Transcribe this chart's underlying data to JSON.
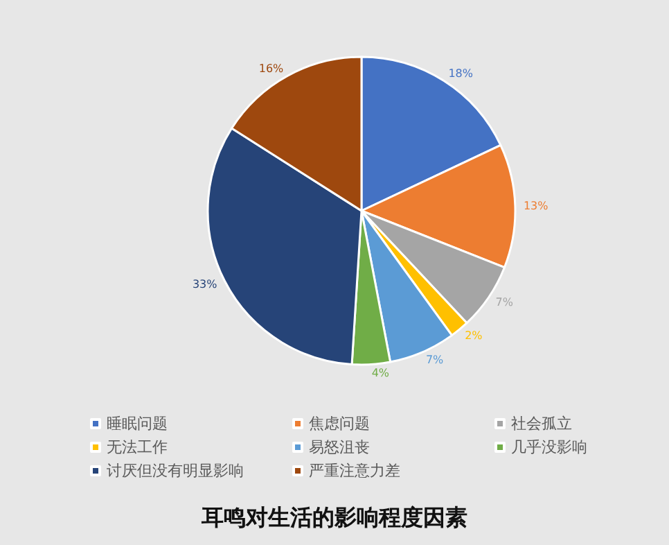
{
  "chart_data": {
    "type": "pie",
    "title": "耳鸣对生活的影响程度因素",
    "categories": [
      "睡眠问题",
      "焦虑问题",
      "社会孤立",
      "无法工作",
      "易怒沮丧",
      "几乎没影响",
      "讨厌但没有明显影响",
      "严重注意力差"
    ],
    "values": [
      18,
      13,
      7,
      2,
      7,
      4,
      33,
      16
    ],
    "value_labels": [
      "18%",
      "13%",
      "7%",
      "2%",
      "7%",
      "4%",
      "33%",
      "16%"
    ],
    "colors": [
      "#4472c4",
      "#ed7d31",
      "#a5a5a5",
      "#ffc000",
      "#5b9bd5",
      "#70ad47",
      "#264478",
      "#9e480e"
    ],
    "legend": "bottom"
  }
}
